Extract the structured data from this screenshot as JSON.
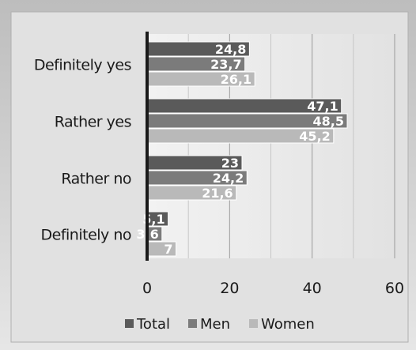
{
  "chart_data": {
    "type": "bar",
    "orientation": "horizontal",
    "categories": [
      "Definitely yes",
      "Rather yes",
      "Rather no",
      "Definitely no"
    ],
    "series": [
      {
        "name": "Total",
        "values": [
          24.8,
          47.1,
          23,
          5.1
        ],
        "labels": [
          "24,8",
          "47,1",
          "23",
          "5,1"
        ],
        "color": "#5a5a5a"
      },
      {
        "name": "Men",
        "values": [
          23.7,
          48.5,
          24.2,
          3.6
        ],
        "labels": [
          "23,7",
          "48,5",
          "24,2",
          "3,6"
        ],
        "color": "#7b7b7b"
      },
      {
        "name": "Women",
        "values": [
          26.1,
          45.2,
          21.6,
          7
        ],
        "labels": [
          "26,1",
          "45,2",
          "21,6",
          "7"
        ],
        "color": "#b9b9b9"
      }
    ],
    "x_ticks": [
      "0",
      "20",
      "40",
      "60"
    ],
    "xlim": [
      0,
      60
    ],
    "grid": true,
    "legend_position": "bottom",
    "background_color": "#d9d9d9",
    "plot_background": "#ececec"
  }
}
